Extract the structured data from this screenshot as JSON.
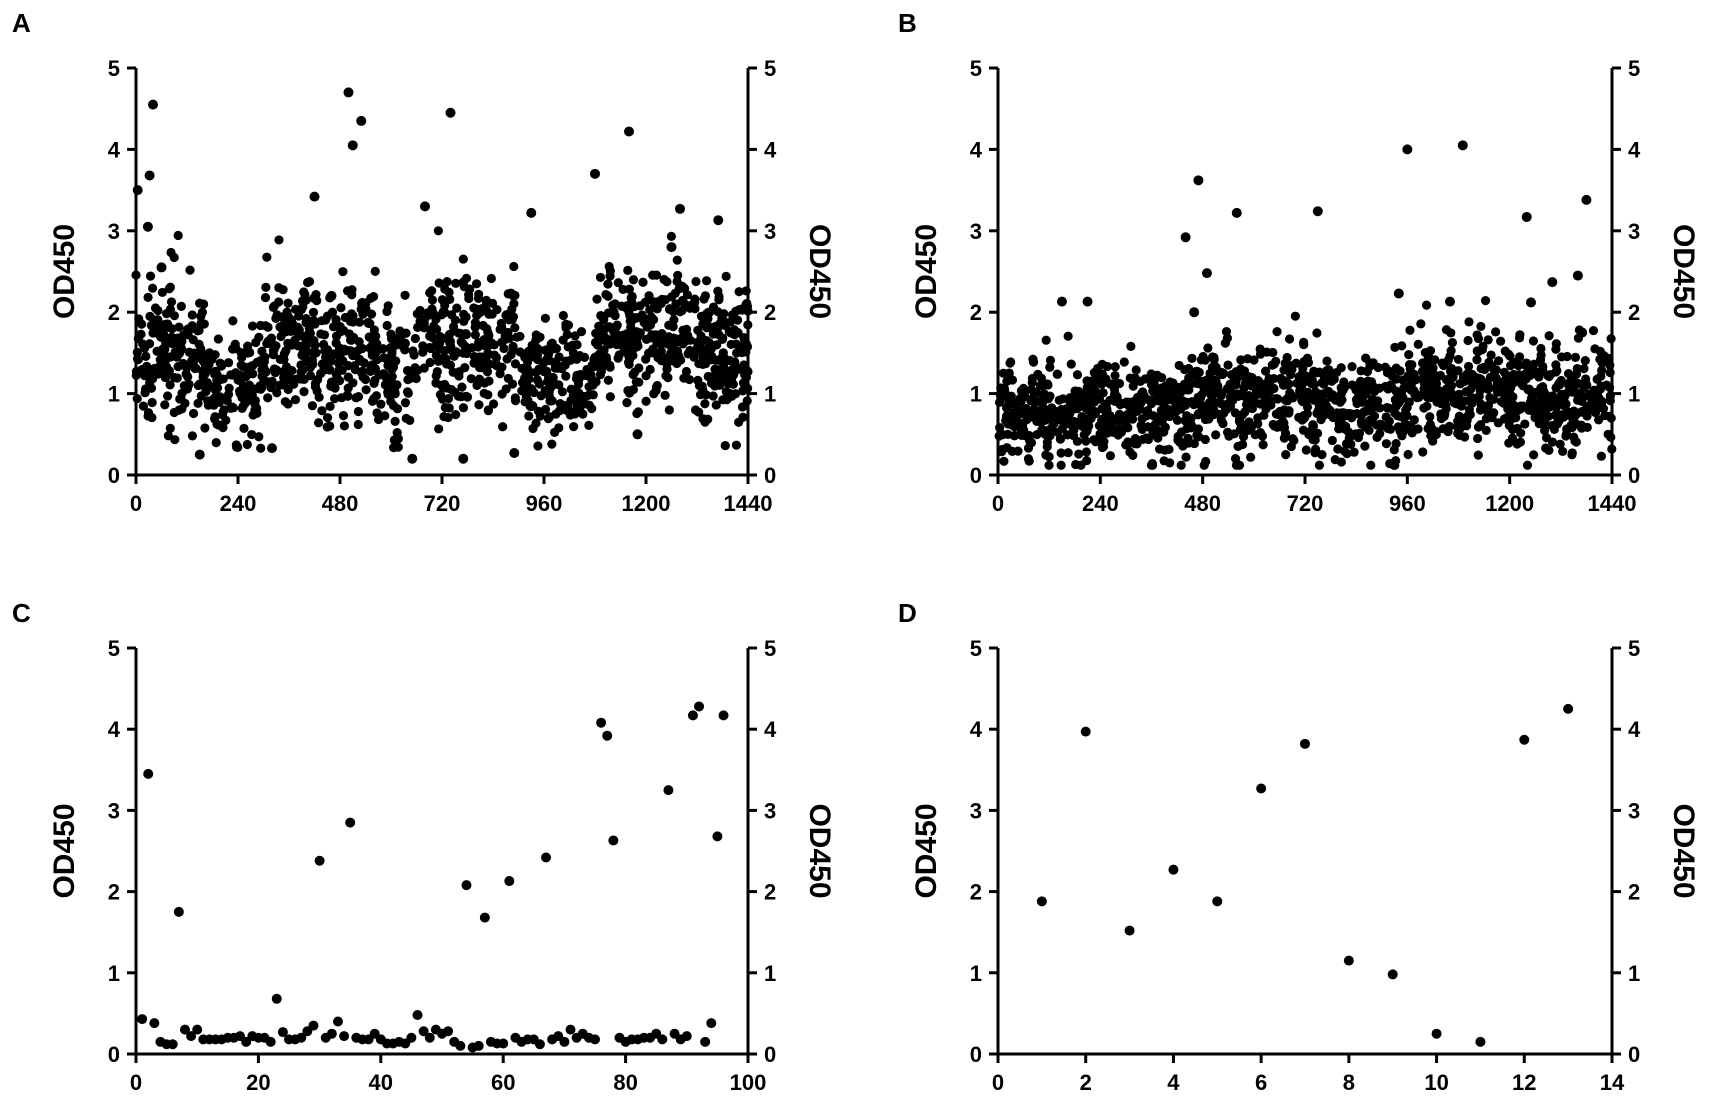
{
  "chart_data": [
    {
      "panel": "A",
      "type": "scatter",
      "ylabel": "OD450",
      "ylabel_right": "OD450",
      "xlim": [
        0,
        1440
      ],
      "ylim": [
        0,
        5
      ],
      "xticks": [
        "0",
        "240",
        "480",
        "720",
        "960",
        "1200",
        "1440"
      ],
      "xtick_values": [
        0,
        240,
        480,
        720,
        960,
        1200,
        1440
      ],
      "yticks": [
        "0",
        "1",
        "2",
        "3",
        "4",
        "5"
      ],
      "grid": false,
      "dense": {
        "n": 1440,
        "seed": 11,
        "bands": [
          [
            0,
            60,
            1.55,
            0.45
          ],
          [
            60,
            160,
            1.45,
            0.42
          ],
          [
            160,
            300,
            1.15,
            0.32
          ],
          [
            300,
            420,
            1.65,
            0.4
          ],
          [
            420,
            560,
            1.55,
            0.42
          ],
          [
            560,
            660,
            1.3,
            0.38
          ],
          [
            660,
            780,
            1.6,
            0.45
          ],
          [
            780,
            900,
            1.6,
            0.42
          ],
          [
            900,
            1080,
            1.2,
            0.35
          ],
          [
            1080,
            1200,
            1.65,
            0.4
          ],
          [
            1200,
            1320,
            1.75,
            0.42
          ],
          [
            1320,
            1440,
            1.55,
            0.42
          ]
        ]
      },
      "points": [
        [
          4,
          3.5
        ],
        [
          28,
          3.05
        ],
        [
          32,
          3.68
        ],
        [
          40,
          4.55
        ],
        [
          60,
          2.55
        ],
        [
          150,
          0.25
        ],
        [
          320,
          0.33
        ],
        [
          420,
          3.42
        ],
        [
          460,
          2.2
        ],
        [
          500,
          4.7
        ],
        [
          510,
          4.05
        ],
        [
          530,
          4.35
        ],
        [
          680,
          3.3
        ],
        [
          740,
          4.45
        ],
        [
          650,
          0.2
        ],
        [
          770,
          0.2
        ],
        [
          890,
          0.27
        ],
        [
          930,
          3.22
        ],
        [
          1080,
          3.7
        ],
        [
          1160,
          4.22
        ],
        [
          1180,
          0.5
        ],
        [
          1260,
          2.8
        ],
        [
          1280,
          3.27
        ],
        [
          1370,
          3.13
        ]
      ]
    },
    {
      "panel": "B",
      "type": "scatter",
      "ylabel": "OD450",
      "ylabel_right": "OD450",
      "xlim": [
        0,
        1440
      ],
      "ylim": [
        0,
        5
      ],
      "xticks": [
        "0",
        "240",
        "480",
        "720",
        "960",
        "1200",
        "1440"
      ],
      "xtick_values": [
        0,
        240,
        480,
        720,
        960,
        1200,
        1440
      ],
      "yticks": [
        "0",
        "1",
        "2",
        "3",
        "4",
        "5"
      ],
      "grid": false,
      "dense": {
        "n": 1440,
        "seed": 23,
        "bands": [
          [
            0,
            240,
            0.8,
            0.3
          ],
          [
            240,
            480,
            0.85,
            0.32
          ],
          [
            480,
            720,
            0.95,
            0.35
          ],
          [
            720,
            960,
            0.85,
            0.32
          ],
          [
            960,
            1200,
            1.05,
            0.32
          ],
          [
            1200,
            1440,
            0.95,
            0.32
          ]
        ]
      },
      "points": [
        [
          150,
          2.13
        ],
        [
          210,
          2.13
        ],
        [
          440,
          2.92
        ],
        [
          460,
          2.0
        ],
        [
          470,
          3.62
        ],
        [
          490,
          2.48
        ],
        [
          560,
          3.22
        ],
        [
          750,
          3.24
        ],
        [
          940,
          2.23
        ],
        [
          960,
          4.0
        ],
        [
          1060,
          2.13
        ],
        [
          1090,
          4.05
        ],
        [
          1240,
          3.17
        ],
        [
          1250,
          2.12
        ],
        [
          1300,
          2.37
        ],
        [
          1360,
          2.45
        ],
        [
          1380,
          3.38
        ],
        [
          1370,
          1.75
        ]
      ]
    },
    {
      "panel": "C",
      "type": "scatter",
      "ylabel": "OD450",
      "ylabel_right": "OD450",
      "xlim": [
        0,
        100
      ],
      "ylim": [
        0,
        5
      ],
      "xticks": [
        "0",
        "20",
        "40",
        "60",
        "80",
        "100"
      ],
      "xtick_values": [
        0,
        20,
        40,
        60,
        80,
        100
      ],
      "yticks": [
        "0",
        "1",
        "2",
        "3",
        "4",
        "5"
      ],
      "grid": false,
      "points": [
        [
          1,
          0.43
        ],
        [
          2,
          3.45
        ],
        [
          3,
          0.38
        ],
        [
          4,
          0.15
        ],
        [
          5,
          0.12
        ],
        [
          6,
          0.12
        ],
        [
          7,
          1.75
        ],
        [
          8,
          0.3
        ],
        [
          9,
          0.22
        ],
        [
          10,
          0.3
        ],
        [
          11,
          0.18
        ],
        [
          12,
          0.18
        ],
        [
          13,
          0.18
        ],
        [
          14,
          0.18
        ],
        [
          15,
          0.2
        ],
        [
          16,
          0.2
        ],
        [
          17,
          0.22
        ],
        [
          18,
          0.15
        ],
        [
          19,
          0.22
        ],
        [
          20,
          0.2
        ],
        [
          21,
          0.2
        ],
        [
          22,
          0.15
        ],
        [
          23,
          0.68
        ],
        [
          24,
          0.27
        ],
        [
          25,
          0.18
        ],
        [
          26,
          0.18
        ],
        [
          27,
          0.2
        ],
        [
          28,
          0.28
        ],
        [
          29,
          0.35
        ],
        [
          30,
          2.38
        ],
        [
          31,
          0.2
        ],
        [
          32,
          0.25
        ],
        [
          33,
          0.4
        ],
        [
          34,
          0.22
        ],
        [
          35,
          2.85
        ],
        [
          36,
          0.2
        ],
        [
          37,
          0.18
        ],
        [
          38,
          0.18
        ],
        [
          39,
          0.25
        ],
        [
          40,
          0.18
        ],
        [
          41,
          0.13
        ],
        [
          42,
          0.13
        ],
        [
          43,
          0.15
        ],
        [
          44,
          0.13
        ],
        [
          45,
          0.2
        ],
        [
          46,
          0.48
        ],
        [
          47,
          0.28
        ],
        [
          48,
          0.2
        ],
        [
          49,
          0.3
        ],
        [
          50,
          0.25
        ],
        [
          51,
          0.28
        ],
        [
          52,
          0.15
        ],
        [
          53,
          0.1
        ],
        [
          54,
          2.08
        ],
        [
          55,
          0.08
        ],
        [
          56,
          0.1
        ],
        [
          57,
          1.68
        ],
        [
          58,
          0.15
        ],
        [
          59,
          0.13
        ],
        [
          60,
          0.13
        ],
        [
          61,
          2.13
        ],
        [
          62,
          0.2
        ],
        [
          63,
          0.15
        ],
        [
          64,
          0.18
        ],
        [
          65,
          0.18
        ],
        [
          66,
          0.12
        ],
        [
          67,
          2.42
        ],
        [
          68,
          0.18
        ],
        [
          69,
          0.22
        ],
        [
          70,
          0.15
        ],
        [
          71,
          0.3
        ],
        [
          72,
          0.2
        ],
        [
          73,
          0.25
        ],
        [
          74,
          0.2
        ],
        [
          75,
          0.18
        ],
        [
          76,
          4.08
        ],
        [
          77,
          3.92
        ],
        [
          78,
          2.63
        ],
        [
          79,
          0.2
        ],
        [
          80,
          0.15
        ],
        [
          81,
          0.18
        ],
        [
          82,
          0.18
        ],
        [
          83,
          0.2
        ],
        [
          84,
          0.2
        ],
        [
          85,
          0.25
        ],
        [
          86,
          0.18
        ],
        [
          87,
          3.25
        ],
        [
          88,
          0.25
        ],
        [
          89,
          0.18
        ],
        [
          90,
          0.22
        ],
        [
          91,
          4.17
        ],
        [
          92,
          4.28
        ],
        [
          93,
          0.15
        ],
        [
          94,
          0.38
        ],
        [
          95,
          2.68
        ],
        [
          96,
          4.17
        ]
      ]
    },
    {
      "panel": "D",
      "type": "scatter",
      "ylabel": "OD450",
      "ylabel_right": "OD450",
      "xlim": [
        0,
        14
      ],
      "ylim": [
        0,
        5
      ],
      "xticks": [
        "0",
        "2",
        "4",
        "6",
        "8",
        "10",
        "12",
        "14"
      ],
      "xtick_values": [
        0,
        2,
        4,
        6,
        8,
        10,
        12,
        14
      ],
      "yticks": [
        "0",
        "1",
        "2",
        "3",
        "4",
        "5"
      ],
      "grid": false,
      "points": [
        [
          1,
          1.88
        ],
        [
          2,
          3.97
        ],
        [
          3,
          1.52
        ],
        [
          4,
          2.27
        ],
        [
          5,
          1.88
        ],
        [
          6,
          3.27
        ],
        [
          7,
          3.82
        ],
        [
          8,
          1.15
        ],
        [
          9,
          0.98
        ],
        [
          10,
          0.25
        ],
        [
          11,
          0.15
        ],
        [
          12,
          3.87
        ],
        [
          13,
          4.25
        ]
      ]
    }
  ]
}
